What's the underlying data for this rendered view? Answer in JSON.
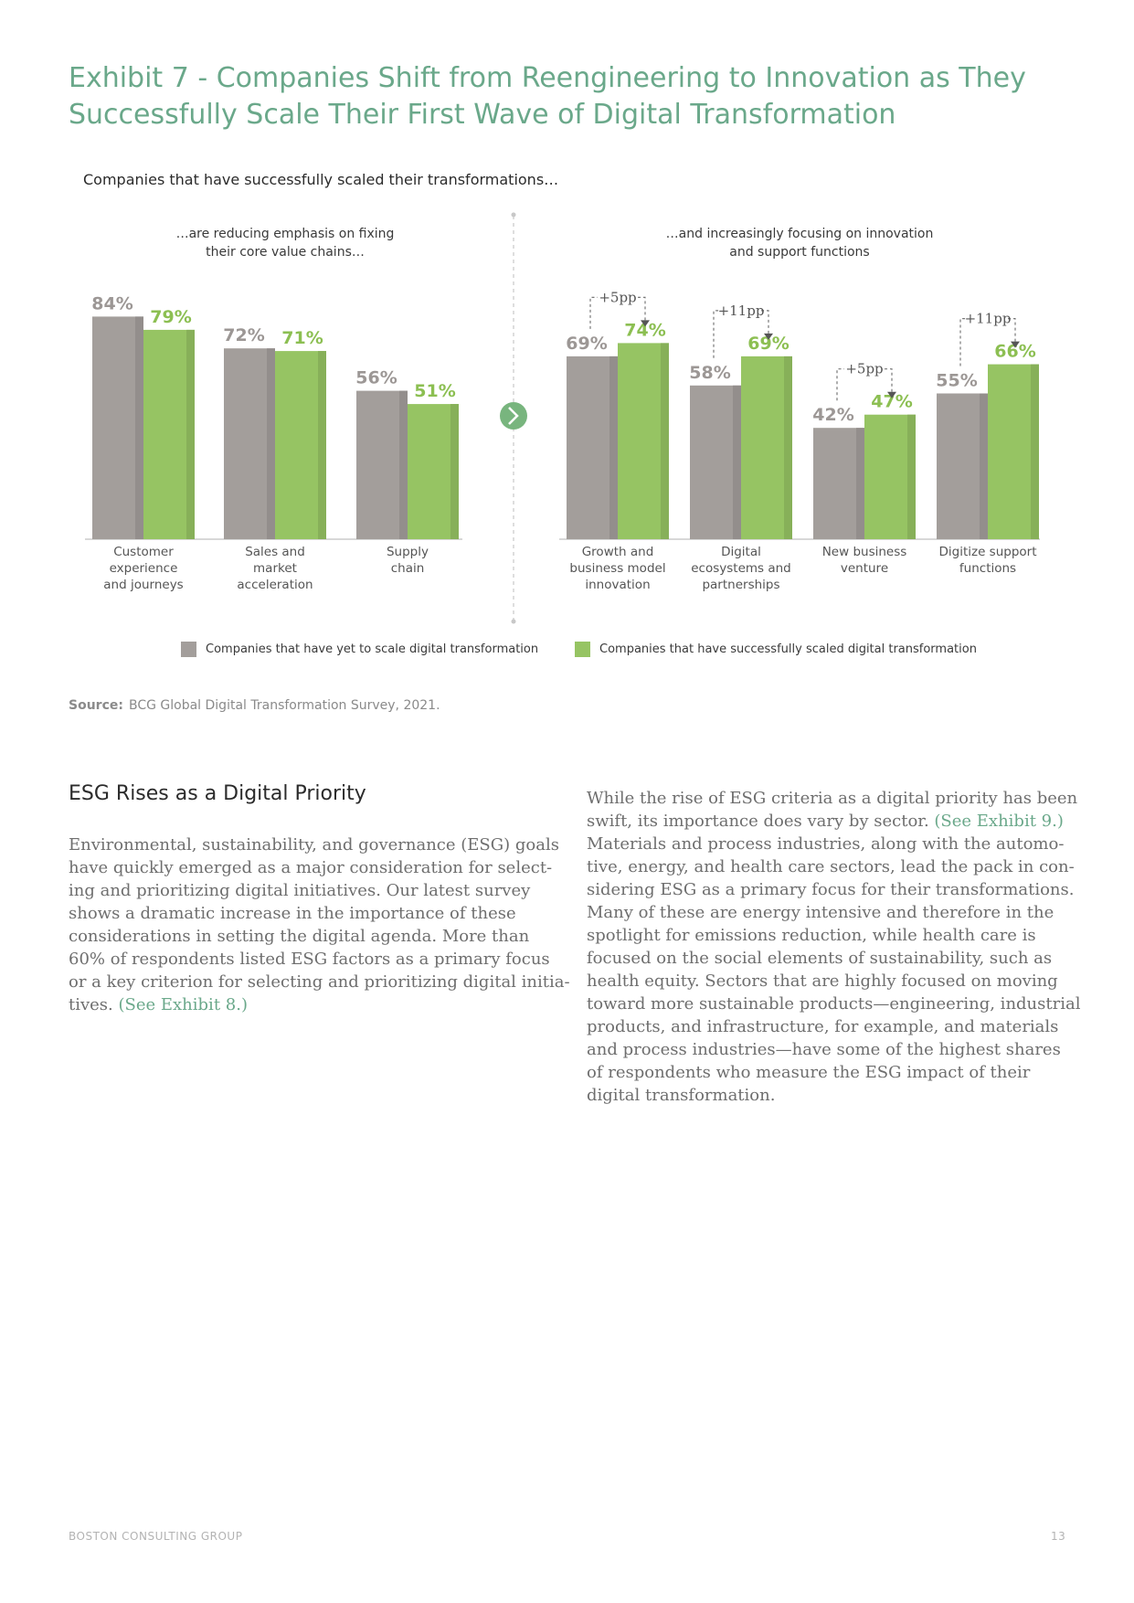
{
  "title_line1": "Exhibit 7 - Companies Shift from Reengineering to Innovation as They",
  "title_line2": "Successfully Scale Their First Wave of Digital Transformation",
  "subtitle": "Companies that have successfully scaled their transformations…",
  "colors": {
    "gray": "#a39e9b",
    "green": "#96c463",
    "title": "#6aa88a",
    "arrow": "#78b57e"
  },
  "chart_data": {
    "type": "bar",
    "legend": {
      "placement": "bottom",
      "items": [
        {
          "label": "Companies that have yet to scale digital transformation",
          "color": "#a39e9b"
        },
        {
          "label": "Companies that have successfully scaled digital transformation",
          "color": "#96c463"
        }
      ]
    },
    "panels": [
      {
        "subtitle_line1": "…are reducing emphasis on fixing",
        "subtitle_line2": "their core value chains…",
        "categories": [
          [
            "Customer",
            "experience",
            "and journeys"
          ],
          [
            "Sales and",
            "market",
            "acceleration"
          ],
          [
            "Supply",
            "chain"
          ]
        ],
        "series": [
          {
            "name": "Companies that have yet to scale digital transformation",
            "values": [
              84,
              72,
              56
            ],
            "labels": [
              "84%",
              "72%",
              "56%"
            ]
          },
          {
            "name": "Companies that have successfully scaled digital transformation",
            "values": [
              79,
              71,
              51
            ],
            "labels": [
              "79%",
              "71%",
              "51%"
            ]
          }
        ]
      },
      {
        "subtitle_line1": "…and increasingly focusing on innovation",
        "subtitle_line2": "and support functions",
        "categories": [
          [
            "Growth and",
            "business model",
            "innovation"
          ],
          [
            "Digital",
            "ecosystems and",
            "partnerships"
          ],
          [
            "New business",
            "venture"
          ],
          [
            "Digitize support",
            "functions"
          ]
        ],
        "series": [
          {
            "name": "Companies that have yet to scale digital transformation",
            "values": [
              69,
              58,
              42,
              55
            ],
            "labels": [
              "69%",
              "58%",
              "42%",
              "55%"
            ]
          },
          {
            "name": "Companies that have successfully scaled digital transformation",
            "values": [
              74,
              69,
              47,
              66
            ],
            "labels": [
              "74%",
              "69%",
              "47%",
              "66%"
            ]
          }
        ],
        "annotations": [
          "+5pp",
          "+11pp",
          "+5pp",
          "+11pp"
        ]
      }
    ]
  },
  "source_label": "Source:",
  "source_text": "BCG Global Digital Transformation Survey, 2021.",
  "section_heading": "ESG Rises as a Digital Priority",
  "left_column": {
    "lines": [
      "Environmental, sustainability, and governance (ESG) goals",
      "have quickly emerged as a major consideration for select-",
      "ing and prioritizing digital initiatives. Our latest survey",
      "shows a dramatic increase in the importance of these",
      "considerations in setting the digital agenda. More than",
      "60% of respondents listed ESG factors as a primary focus",
      "or a key criterion for selecting and prioritizing digital initia-"
    ],
    "last_line": "tives.",
    "link": "(See Exhibit 8.)"
  },
  "right_column": {
    "line1": "While the rise of ESG criteria as a digital priority has been",
    "line2": "swift, its importance does vary by sector.",
    "link": "(See Exhibit 9.)",
    "lines": [
      "Materials and process industries, along with the automo-",
      "tive, energy, and health care sectors, lead the pack in con-",
      "sidering ESG as a primary focus for their transformations.",
      "Many of these are energy intensive and therefore in the",
      "spotlight for emissions reduction, while health care is",
      "focused on the social elements of sustainability, such as",
      "health equity. Sectors that are highly focused on moving",
      "toward more sustainable products—engineering, industrial",
      "products, and infrastructure, for example, and materials",
      "and process industries—have some of the highest shares",
      "of respondents who measure the ESG impact of their",
      "digital transformation."
    ]
  },
  "footer_left": "BOSTON CONSULTING GROUP",
  "footer_right": "13"
}
